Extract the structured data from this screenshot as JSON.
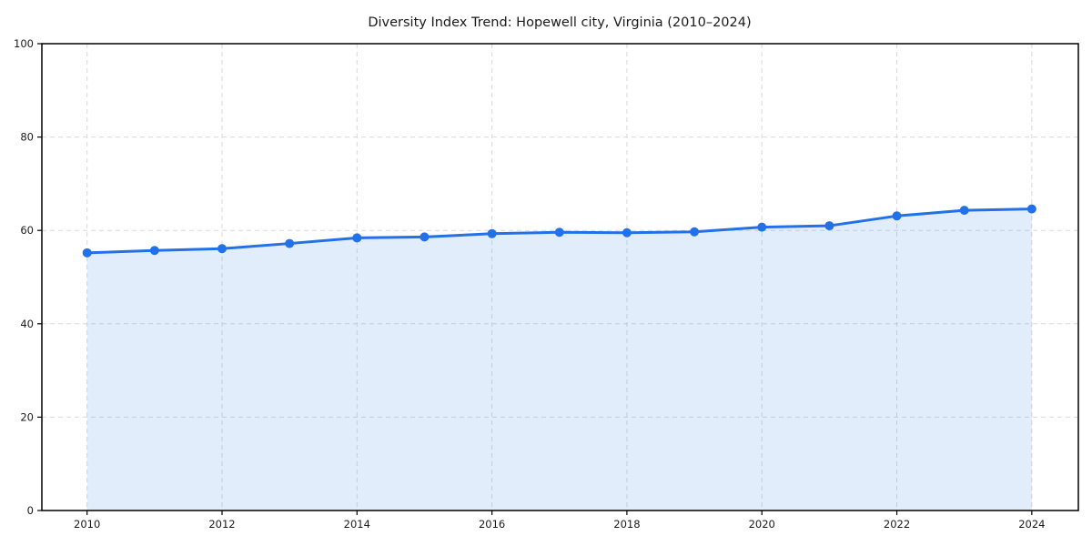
{
  "chart_data": {
    "type": "line",
    "title": "Diversity Index Trend: Hopewell city, Virginia (2010–2024)",
    "xlabel": "",
    "ylabel": "",
    "x": [
      2010,
      2011,
      2012,
      2013,
      2014,
      2015,
      2016,
      2017,
      2018,
      2019,
      2020,
      2021,
      2022,
      2023,
      2024
    ],
    "series": [
      {
        "name": "Diversity Index",
        "values": [
          55.2,
          55.7,
          56.1,
          57.2,
          58.4,
          58.6,
          59.3,
          59.6,
          59.5,
          59.7,
          60.7,
          61.0,
          63.1,
          64.3,
          64.6
        ]
      }
    ],
    "xlim": [
      2009.33,
      2024.69
    ],
    "ylim": [
      0,
      100
    ],
    "xticks": [
      2010,
      2012,
      2014,
      2016,
      2018,
      2020,
      2022,
      2024
    ],
    "yticks": [
      0,
      20,
      40,
      60,
      80,
      100
    ],
    "grid": true,
    "grid_style": "dashed",
    "legend": false,
    "marker": "circle",
    "area_fill": true,
    "fill_opacity": 0.13,
    "colors": {
      "line": "#2271e8",
      "fill": "#2271e8",
      "grid": "#d9d9d9",
      "axis": "#000000",
      "text": "#1a1a1a"
    }
  }
}
